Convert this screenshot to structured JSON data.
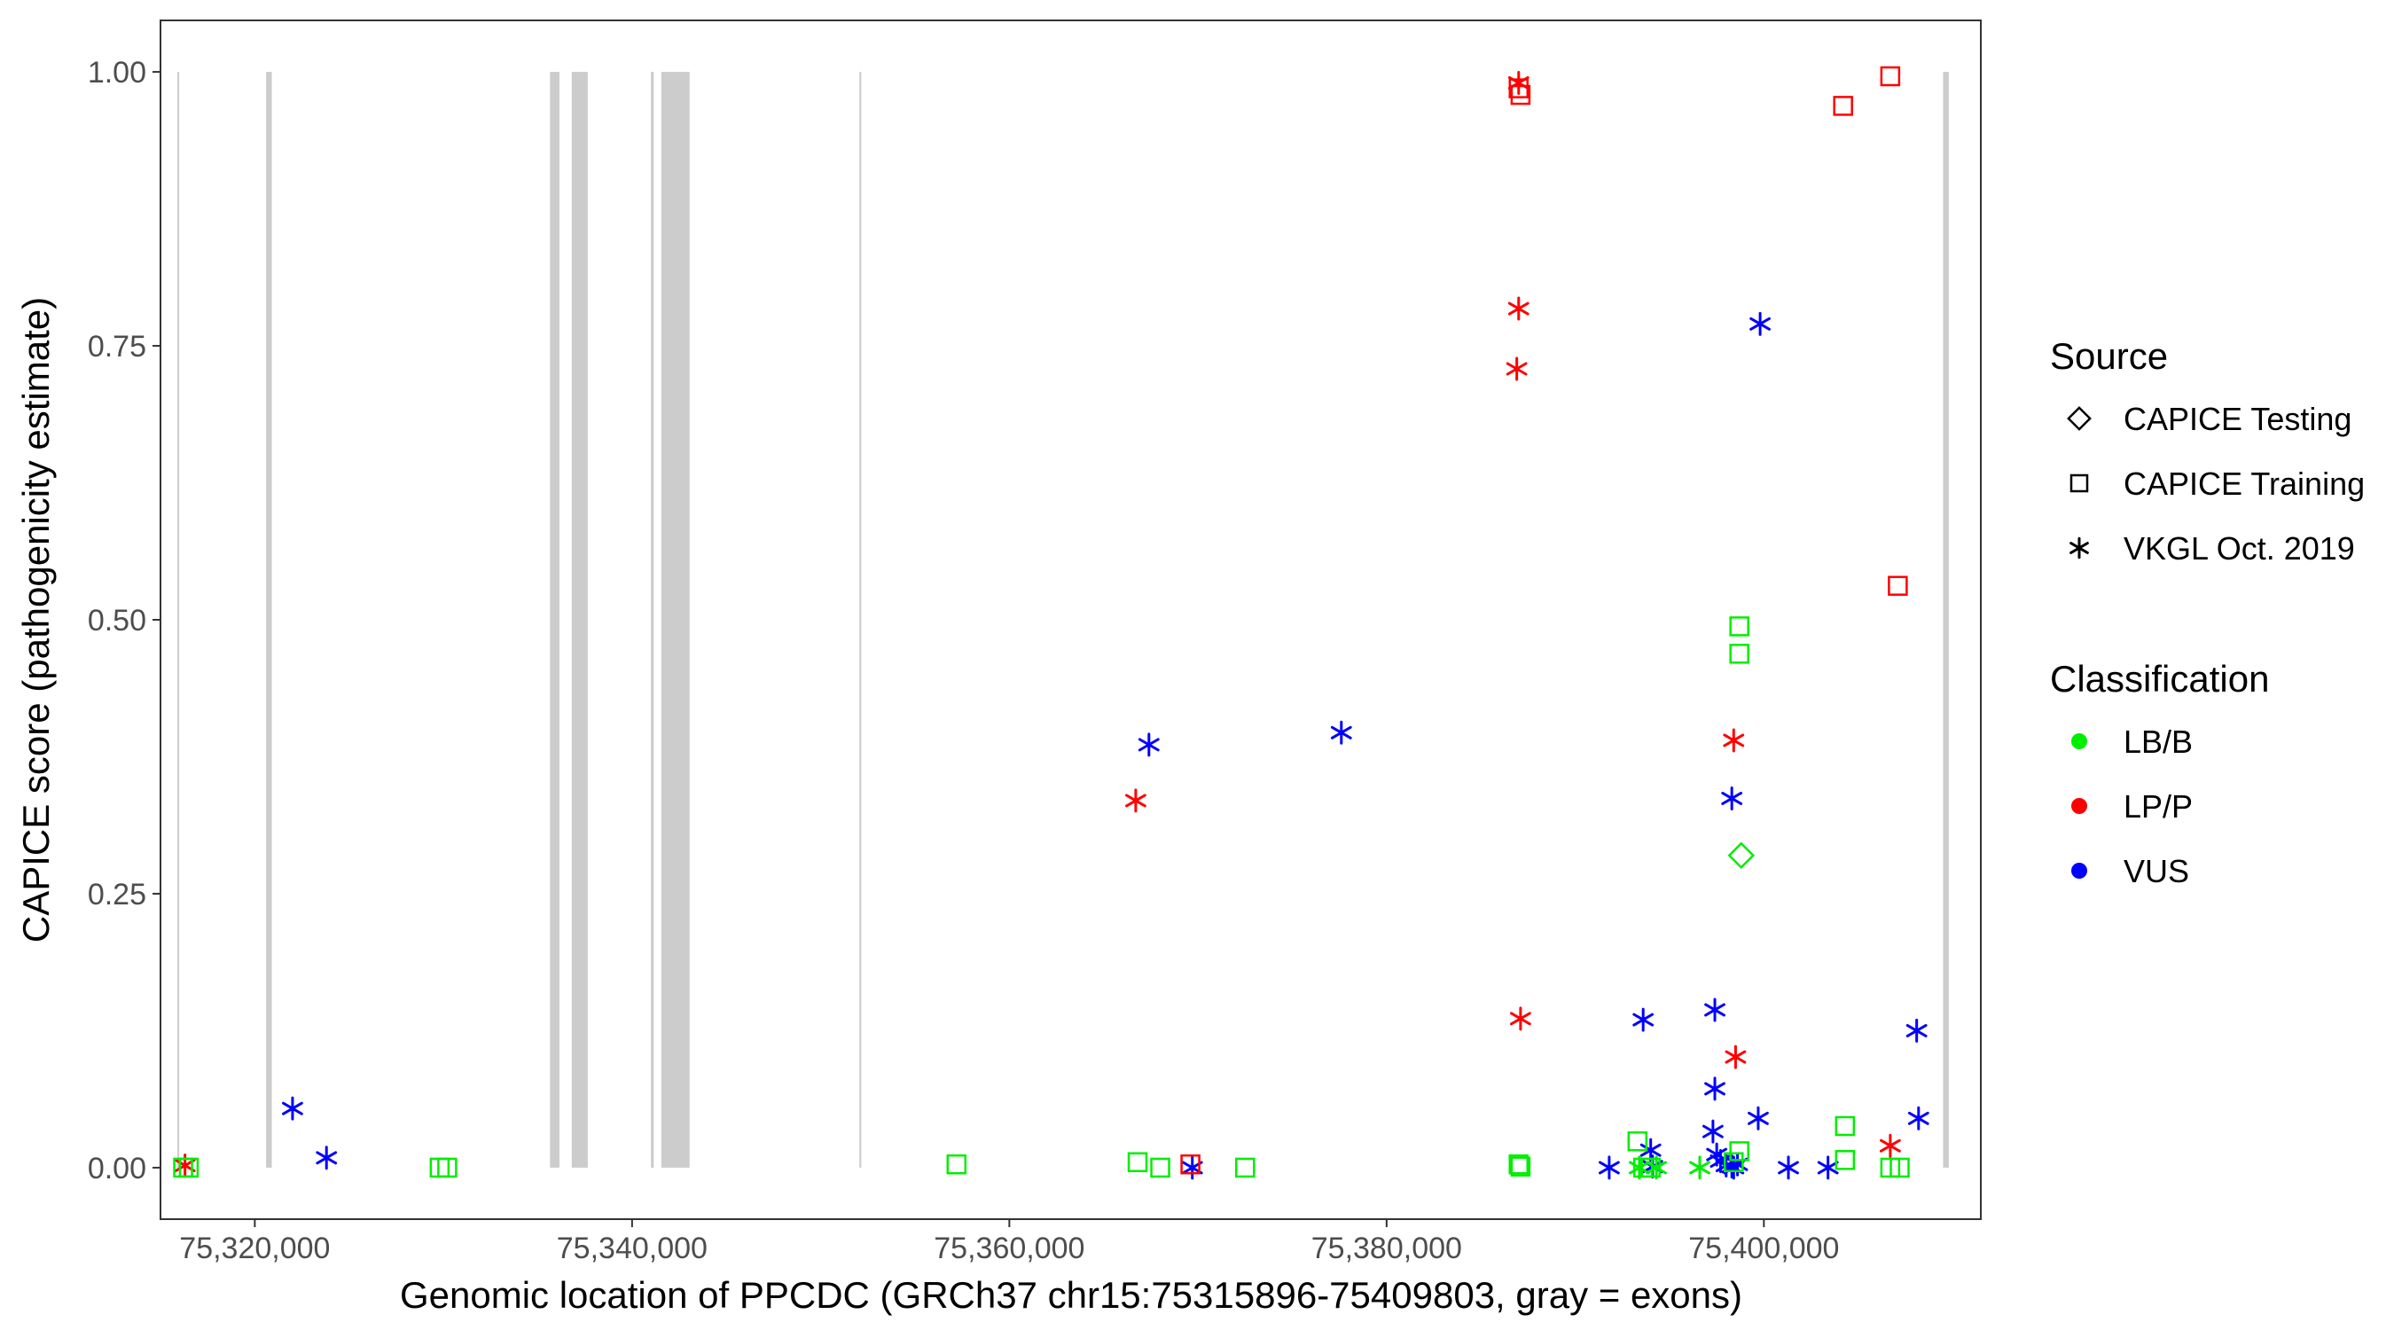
{
  "chart_data": {
    "type": "scatter",
    "xlabel": "Genomic location of PPCDC (GRCh37 chr15:75315896-75409803, gray = exons)",
    "ylabel": "CAPICE score (pathogenicity estimate)",
    "xlim": [
      75315000,
      75411500
    ],
    "ylim": [
      -0.047,
      1.047
    ],
    "x_ticks": [
      75320000,
      75340000,
      75360000,
      75380000,
      75400000
    ],
    "x_tick_labels": [
      "75,320,000",
      "75,340,000",
      "75,360,000",
      "75,380,000",
      "75,400,000"
    ],
    "y_ticks": [
      0,
      0.25,
      0.5,
      0.75,
      1.0
    ],
    "y_tick_labels": [
      "0.00",
      "0.25",
      "0.50",
      "0.75",
      "1.00"
    ],
    "exon_color": "#cccccc",
    "exons": [
      {
        "start": 75315896,
        "end": 75315990
      },
      {
        "start": 75320600,
        "end": 75320900
      },
      {
        "start": 75335650,
        "end": 75336150
      },
      {
        "start": 75336800,
        "end": 75337650
      },
      {
        "start": 75341000,
        "end": 75341150
      },
      {
        "start": 75341550,
        "end": 75343050
      },
      {
        "start": 75352050,
        "end": 75352150
      },
      {
        "start": 75409500,
        "end": 75409803
      }
    ],
    "legend": {
      "source_title": "Source",
      "source_items": [
        {
          "label": "CAPICE Testing",
          "shape": "diamond"
        },
        {
          "label": "CAPICE Training",
          "shape": "square"
        },
        {
          "label": "VKGL Oct. 2019",
          "shape": "asterisk"
        }
      ],
      "class_title": "Classification",
      "class_items": [
        {
          "label": "LB/B",
          "color": "#00ee00"
        },
        {
          "label": "LP/P",
          "color": "#ff0000"
        },
        {
          "label": "VUS",
          "color": "#0000ff"
        }
      ]
    },
    "colors": {
      "LB/B": "#00ee00",
      "LP/P": "#ff0000",
      "VUS": "#0000ff"
    },
    "series": [
      {
        "source": "VKGL Oct. 2019",
        "class": "VUS",
        "shape": "asterisk",
        "points": [
          [
            75322000,
            0.054
          ],
          [
            75323800,
            0.009
          ],
          [
            75367400,
            0.386
          ],
          [
            75369700,
            0.0
          ],
          [
            75377600,
            0.397
          ],
          [
            75391800,
            0.0
          ],
          [
            75393600,
            0.135
          ],
          [
            75394000,
            0.016
          ],
          [
            75394100,
            0.001
          ],
          [
            75397400,
            0.144
          ],
          [
            75397400,
            0.072
          ],
          [
            75397300,
            0.033
          ],
          [
            75397500,
            0.012
          ],
          [
            75397700,
            0.006
          ],
          [
            75398000,
            0.002
          ],
          [
            75398300,
            0.001
          ],
          [
            75398300,
            0.337
          ],
          [
            75398600,
            0.003
          ],
          [
            75398400,
            0.0
          ],
          [
            75399800,
            0.77
          ],
          [
            75399700,
            0.045
          ],
          [
            75401300,
            0.0
          ],
          [
            75403400,
            0.0
          ],
          [
            75408100,
            0.125
          ],
          [
            75408200,
            0.045
          ]
        ]
      },
      {
        "source": "VKGL Oct. 2019",
        "class": "LP/P",
        "shape": "asterisk",
        "points": [
          [
            75316300,
            0.002
          ],
          [
            75366700,
            0.335
          ],
          [
            75387000,
            0.99
          ],
          [
            75387000,
            0.784
          ],
          [
            75386900,
            0.729
          ],
          [
            75387100,
            0.136
          ],
          [
            75398400,
            0.39
          ],
          [
            75398500,
            0.101
          ],
          [
            75406700,
            0.02
          ]
        ]
      },
      {
        "source": "VKGL Oct. 2019",
        "class": "LB/B",
        "shape": "asterisk",
        "points": [
          [
            75393400,
            0.0
          ],
          [
            75394300,
            0.0
          ],
          [
            75396600,
            0.0
          ]
        ]
      },
      {
        "source": "CAPICE Training",
        "class": "LB/B",
        "shape": "square",
        "points": [
          [
            75316200,
            0.0
          ],
          [
            75316500,
            0.0
          ],
          [
            75329800,
            0.0
          ],
          [
            75330200,
            0.0
          ],
          [
            75357200,
            0.003
          ],
          [
            75366800,
            0.005
          ],
          [
            75368000,
            0.0
          ],
          [
            75372500,
            0.0
          ],
          [
            75387000,
            0.003
          ],
          [
            75387100,
            0.001
          ],
          [
            75393300,
            0.024
          ],
          [
            75393600,
            0.0
          ],
          [
            75394000,
            0.0
          ],
          [
            75398700,
            0.494
          ],
          [
            75398700,
            0.469
          ],
          [
            75398700,
            0.015
          ],
          [
            75398400,
            0.005
          ],
          [
            75404300,
            0.038
          ],
          [
            75404300,
            0.007
          ],
          [
            75406700,
            0.0
          ],
          [
            75407200,
            0.0
          ]
        ]
      },
      {
        "source": "CAPICE Training",
        "class": "LP/P",
        "shape": "square",
        "points": [
          [
            75387000,
            0.985
          ],
          [
            75387100,
            0.979
          ],
          [
            75404200,
            0.969
          ],
          [
            75406700,
            0.996
          ],
          [
            75407100,
            0.531
          ],
          [
            75369600,
            0.003
          ]
        ]
      },
      {
        "source": "CAPICE Testing",
        "class": "LB/B",
        "shape": "diamond",
        "points": [
          [
            75398800,
            0.285
          ]
        ]
      }
    ]
  }
}
